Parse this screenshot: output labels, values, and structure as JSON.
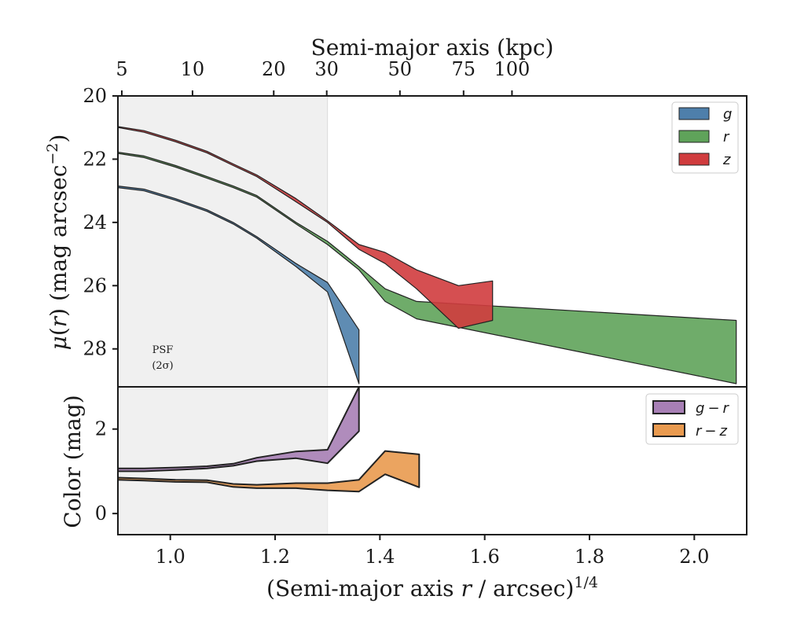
{
  "chart_data": [
    {
      "type": "area",
      "panel": "surface-brightness",
      "xlabel_top": "Semi-major axis (kpc)",
      "top_ticks": [
        5,
        10,
        20,
        30,
        50,
        75,
        100
      ],
      "top_tick_labels": [
        "5",
        "10",
        "20",
        "30",
        "50",
        "75",
        "100"
      ],
      "ylabel": "μ(r) (mag arcsec⁻²)",
      "ylabel_parts": {
        "mu": "μ",
        "r": "r",
        "rest": " (mag arcsec",
        "exp": "−2",
        "close": ")"
      },
      "ylim": [
        29.2,
        20
      ],
      "y_ticks": [
        20,
        22,
        24,
        26,
        28
      ],
      "y_tick_labels": [
        "20",
        "22",
        "24",
        "26",
        "28"
      ],
      "xlim": [
        0.9,
        2.1
      ],
      "shaded_region": [
        0.9,
        1.3
      ],
      "annotation": {
        "line1": "PSF",
        "line2": "(2σ)"
      },
      "legend_position": "top-right",
      "series": [
        {
          "name": "g",
          "color": "#4e7fab",
          "x": [
            0.9,
            0.95,
            1.01,
            1.07,
            1.12,
            1.165,
            1.24,
            1.3,
            1.36
          ],
          "y_upper": [
            22.85,
            22.95,
            23.25,
            23.6,
            24.0,
            24.45,
            25.3,
            25.9,
            27.4
          ],
          "y_lower": [
            22.9,
            23.0,
            23.3,
            23.65,
            24.05,
            24.5,
            25.4,
            26.2,
            29.1
          ]
        },
        {
          "name": "r",
          "color": "#5fa35a",
          "x": [
            0.9,
            0.95,
            1.01,
            1.07,
            1.12,
            1.165,
            1.24,
            1.3,
            1.36,
            1.41,
            1.47,
            2.08
          ],
          "y_upper": [
            21.78,
            21.9,
            22.2,
            22.55,
            22.85,
            23.15,
            24.0,
            24.6,
            25.4,
            26.1,
            26.5,
            27.1
          ],
          "y_lower": [
            21.82,
            21.95,
            22.25,
            22.6,
            22.9,
            23.2,
            24.05,
            24.7,
            25.5,
            26.5,
            27.05,
            29.1
          ]
        },
        {
          "name": "z",
          "color": "#d03c3e",
          "x": [
            0.9,
            0.95,
            1.01,
            1.07,
            1.12,
            1.165,
            1.24,
            1.3,
            1.36,
            1.41,
            1.47,
            1.55,
            1.615
          ],
          "y_upper": [
            20.97,
            21.1,
            21.4,
            21.75,
            22.15,
            22.5,
            23.25,
            23.95,
            24.7,
            24.95,
            25.5,
            26.0,
            25.85
          ],
          "y_lower": [
            21.0,
            21.15,
            21.45,
            21.8,
            22.2,
            22.55,
            23.35,
            24.0,
            24.85,
            25.3,
            26.1,
            27.35,
            27.1
          ]
        }
      ]
    },
    {
      "type": "area",
      "panel": "color",
      "xlabel": "(Semi-major axis r / arcsec)¹ᐟ⁴",
      "xlabel_parts": {
        "pre": "(Semi-major axis ",
        "r": "r",
        "post": " / arcsec)",
        "exp": "1/4"
      },
      "ylabel": "Color (mag)",
      "xlim": [
        0.9,
        2.1
      ],
      "x_ticks": [
        1.0,
        1.2,
        1.4,
        1.6,
        1.8,
        2.0
      ],
      "x_tick_labels": [
        "1.0",
        "1.2",
        "1.4",
        "1.6",
        "1.8",
        "2.0"
      ],
      "ylim": [
        -0.5,
        3.0
      ],
      "y_ticks": [
        0,
        2
      ],
      "y_tick_labels": [
        "0",
        "2"
      ],
      "shaded_region": [
        0.9,
        1.3
      ],
      "legend_position": "top-right",
      "series": [
        {
          "name": "g − r",
          "label_a": "g",
          "label_b": "r",
          "color": "#a77fb5",
          "x": [
            0.9,
            0.95,
            1.01,
            1.07,
            1.12,
            1.165,
            1.24,
            1.3,
            1.36
          ],
          "y_upper": [
            1.07,
            1.07,
            1.09,
            1.12,
            1.18,
            1.32,
            1.47,
            1.51,
            3.0
          ],
          "y_lower": [
            1.0,
            1.0,
            1.03,
            1.07,
            1.13,
            1.24,
            1.31,
            1.19,
            1.95
          ]
        },
        {
          "name": "r − z",
          "label_a": "r",
          "label_b": "z",
          "color": "#e99a4f",
          "x": [
            0.9,
            0.95,
            1.01,
            1.07,
            1.12,
            1.165,
            1.24,
            1.3,
            1.36,
            1.41,
            1.475
          ],
          "y_upper": [
            0.85,
            0.83,
            0.8,
            0.79,
            0.7,
            0.68,
            0.72,
            0.72,
            0.8,
            1.48,
            1.4
          ],
          "y_lower": [
            0.8,
            0.78,
            0.75,
            0.74,
            0.63,
            0.6,
            0.6,
            0.55,
            0.52,
            0.93,
            0.62
          ]
        }
      ]
    }
  ]
}
